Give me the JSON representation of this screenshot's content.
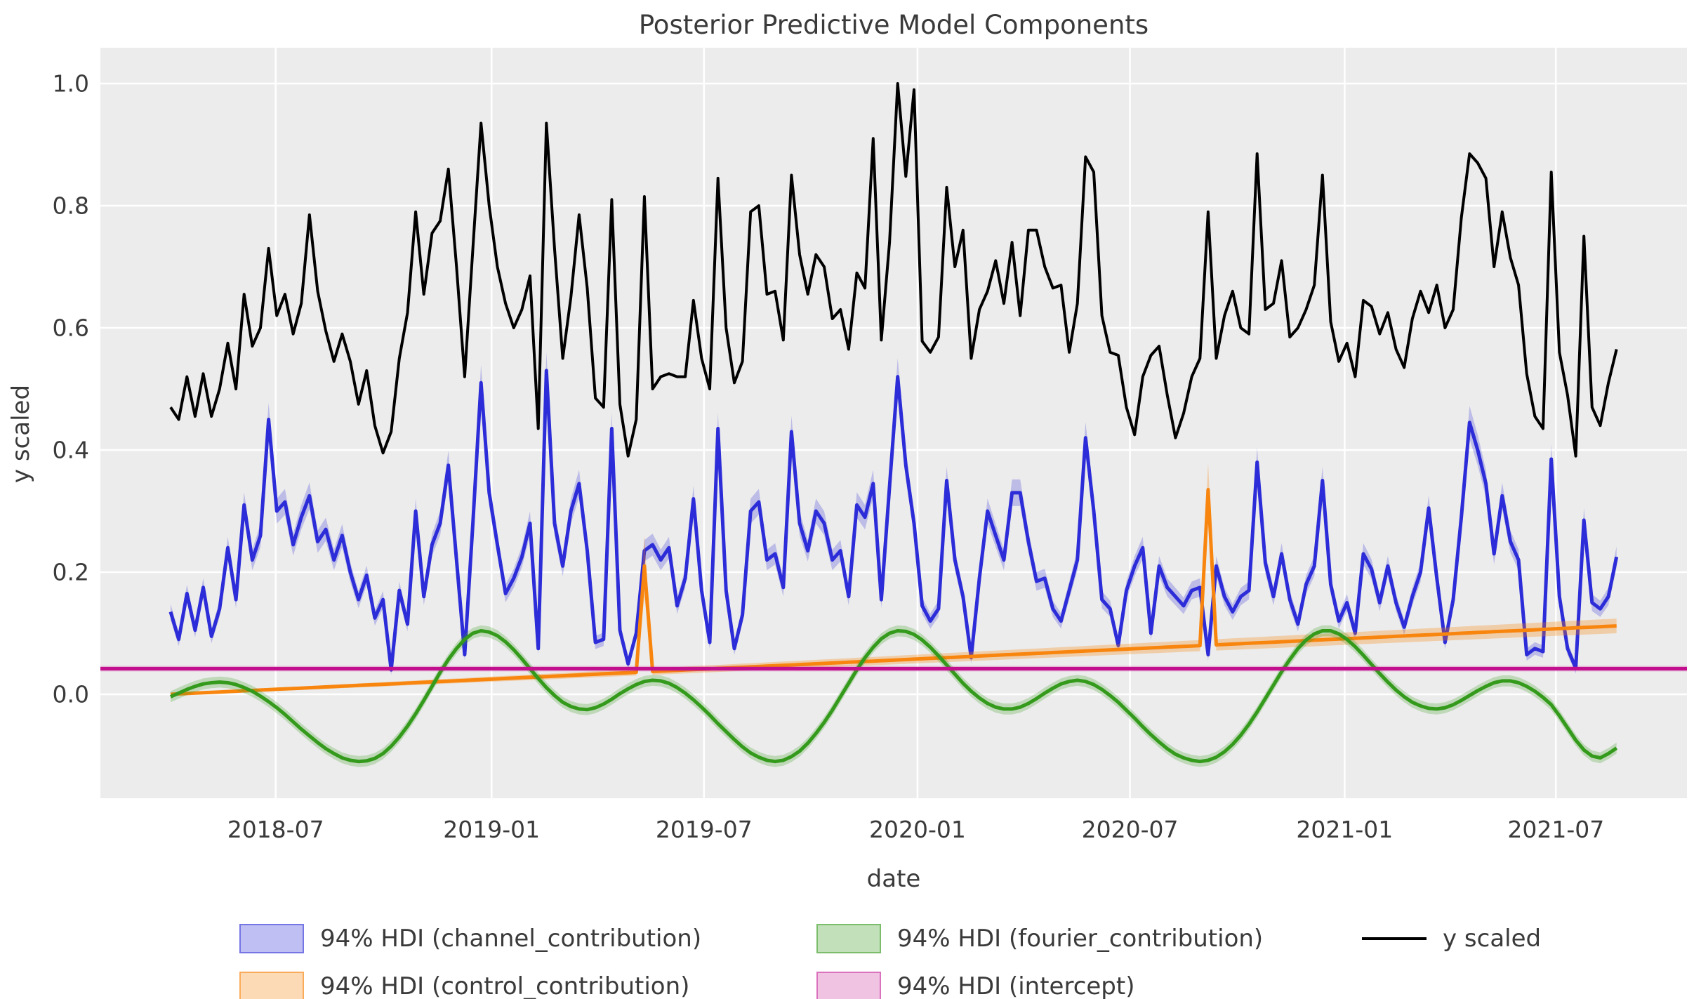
{
  "title": "Posterior Predictive Model Components",
  "colors": {
    "figure_bg": "#ffffff",
    "plot_bg": "#ececec",
    "grid": "#ffffff",
    "text": "#3a3a3a",
    "y_scaled": "#000000",
    "channel": "#2c2cd8",
    "control": "#f8850e",
    "fourier": "#349a1b",
    "intercept": "#c20f8e"
  },
  "chart_data": {
    "type": "line",
    "title": "Posterior Predictive Model Components",
    "xlabel": "date",
    "ylabel": "y scaled",
    "x_start_date": "2018-04-02",
    "x_step_days": 7,
    "n_points": 178,
    "grid": true,
    "y_ticks": [
      {
        "label": "0.0",
        "value": 0.0
      },
      {
        "label": "0.2",
        "value": 0.2
      },
      {
        "label": "0.4",
        "value": 0.4
      },
      {
        "label": "0.6",
        "value": 0.6
      },
      {
        "label": "0.8",
        "value": 0.8
      },
      {
        "label": "1.0",
        "value": 1.0
      }
    ],
    "x_ticks": [
      {
        "label": "2018-07",
        "week": 12.86
      },
      {
        "label": "2019-01",
        "week": 39.29
      },
      {
        "label": "2019-07",
        "week": 65.29
      },
      {
        "label": "2020-01",
        "week": 91.43
      },
      {
        "label": "2020-07",
        "week": 117.43
      },
      {
        "label": "2021-01",
        "week": 143.71
      },
      {
        "label": "2021-07",
        "week": 169.57
      }
    ],
    "series": [
      {
        "name": "channel_contribution",
        "kind": "line_with_hdi",
        "color": "#2c2cd8",
        "band_color": "rgba(44,44,216,0.25)",
        "band_rule": {
          "base": 0.007,
          "per_value": 0.045
        },
        "values": [
          0.135,
          0.09,
          0.165,
          0.105,
          0.175,
          0.095,
          0.14,
          0.24,
          0.155,
          0.31,
          0.22,
          0.26,
          0.45,
          0.3,
          0.315,
          0.245,
          0.29,
          0.325,
          0.25,
          0.27,
          0.22,
          0.26,
          0.2,
          0.155,
          0.195,
          0.125,
          0.155,
          0.04,
          0.17,
          0.115,
          0.3,
          0.16,
          0.245,
          0.28,
          0.375,
          0.22,
          0.065,
          0.28,
          0.51,
          0.33,
          0.245,
          0.165,
          0.19,
          0.225,
          0.28,
          0.075,
          0.53,
          0.28,
          0.21,
          0.3,
          0.345,
          0.235,
          0.085,
          0.09,
          0.435,
          0.105,
          0.05,
          0.1,
          0.235,
          0.245,
          0.22,
          0.24,
          0.145,
          0.19,
          0.32,
          0.17,
          0.085,
          0.435,
          0.17,
          0.075,
          0.13,
          0.3,
          0.315,
          0.22,
          0.23,
          0.175,
          0.43,
          0.28,
          0.235,
          0.3,
          0.28,
          0.22,
          0.235,
          0.16,
          0.31,
          0.29,
          0.345,
          0.155,
          0.34,
          0.52,
          0.375,
          0.28,
          0.145,
          0.12,
          0.14,
          0.35,
          0.22,
          0.16,
          0.06,
          0.19,
          0.3,
          0.26,
          0.22,
          0.33,
          0.33,
          0.25,
          0.185,
          0.19,
          0.14,
          0.12,
          0.17,
          0.22,
          0.42,
          0.3,
          0.155,
          0.14,
          0.08,
          0.17,
          0.21,
          0.24,
          0.1,
          0.21,
          0.175,
          0.16,
          0.145,
          0.17,
          0.175,
          0.065,
          0.21,
          0.16,
          0.135,
          0.16,
          0.17,
          0.38,
          0.215,
          0.16,
          0.23,
          0.155,
          0.115,
          0.18,
          0.21,
          0.35,
          0.18,
          0.12,
          0.15,
          0.1,
          0.23,
          0.205,
          0.15,
          0.21,
          0.15,
          0.11,
          0.16,
          0.2,
          0.305,
          0.19,
          0.085,
          0.155,
          0.29,
          0.445,
          0.4,
          0.345,
          0.23,
          0.325,
          0.25,
          0.22,
          0.065,
          0.075,
          0.07,
          0.385,
          0.16,
          0.075,
          0.043,
          0.285,
          0.15,
          0.14,
          0.16,
          0.225
        ]
      },
      {
        "name": "control_contribution",
        "kind": "line_with_hdi",
        "color": "#f8850e",
        "band_color": "rgba(248,133,14,0.3)",
        "values_linear": {
          "start": 0.0,
          "end": 0.112
        },
        "value_exceptions": {
          "58": 0.21,
          "127": 0.335
        },
        "band_halfwidth_linear": {
          "start": 0.002,
          "end": 0.012
        },
        "band_halfwidth_exceptions": {
          "58": 0.05,
          "127": 0.045
        }
      },
      {
        "name": "fourier_contribution",
        "kind": "line_with_hdi",
        "color": "#349a1b",
        "band_color": "rgba(52,154,27,0.25)",
        "band_halfwidth_const": 0.009,
        "values": [
          -0.004,
          0.002,
          0.008,
          0.013,
          0.017,
          0.019,
          0.02,
          0.019,
          0.016,
          0.011,
          0.005,
          -0.003,
          -0.012,
          -0.022,
          -0.033,
          -0.045,
          -0.057,
          -0.068,
          -0.079,
          -0.089,
          -0.097,
          -0.104,
          -0.108,
          -0.11,
          -0.109,
          -0.105,
          -0.097,
          -0.085,
          -0.07,
          -0.052,
          -0.032,
          -0.01,
          0.013,
          0.036,
          0.057,
          0.075,
          0.09,
          0.1,
          0.104,
          0.102,
          0.096,
          0.086,
          0.073,
          0.058,
          0.042,
          0.026,
          0.011,
          -0.002,
          -0.013,
          -0.02,
          -0.024,
          -0.025,
          -0.022,
          -0.016,
          -0.008,
          0.001,
          0.009,
          0.016,
          0.021,
          0.023,
          0.022,
          0.018,
          0.011,
          0.002,
          -0.009,
          -0.021,
          -0.034,
          -0.048,
          -0.061,
          -0.074,
          -0.086,
          -0.096,
          -0.103,
          -0.108,
          -0.11,
          -0.108,
          -0.102,
          -0.093,
          -0.08,
          -0.064,
          -0.046,
          -0.026,
          -0.004,
          0.018,
          0.04,
          0.06,
          0.077,
          0.091,
          0.1,
          0.104,
          0.103,
          0.098,
          0.089,
          0.077,
          0.063,
          0.048,
          0.033,
          0.018,
          0.005,
          -0.006,
          -0.015,
          -0.021,
          -0.024,
          -0.024,
          -0.021,
          -0.015,
          -0.007,
          0.002,
          0.01,
          0.017,
          0.021,
          0.023,
          0.021,
          0.016,
          0.008,
          -0.002,
          -0.013,
          -0.026,
          -0.039,
          -0.053,
          -0.066,
          -0.078,
          -0.089,
          -0.098,
          -0.104,
          -0.108,
          -0.11,
          -0.108,
          -0.103,
          -0.094,
          -0.082,
          -0.067,
          -0.049,
          -0.029,
          -0.007,
          0.015,
          0.037,
          0.057,
          0.075,
          0.089,
          0.099,
          0.104,
          0.104,
          0.099,
          0.09,
          0.078,
          0.064,
          0.049,
          0.034,
          0.02,
          0.007,
          -0.004,
          -0.013,
          -0.019,
          -0.023,
          -0.024,
          -0.022,
          -0.017,
          -0.01,
          -0.002,
          0.006,
          0.013,
          0.019,
          0.022,
          0.022,
          0.019,
          0.013,
          0.005,
          -0.005,
          -0.017,
          -0.035,
          -0.055,
          -0.075,
          -0.091,
          -0.101,
          -0.104,
          -0.097,
          -0.088
        ]
      },
      {
        "name": "intercept",
        "kind": "hline_with_hdi",
        "color": "#c20f8e",
        "band_color": "rgba(194,15,142,0.25)",
        "value": 0.042,
        "band_halfwidth_const": 0.0045,
        "extend_full_width": true
      },
      {
        "name": "y scaled",
        "kind": "line",
        "color": "#000000",
        "values": [
          0.47,
          0.45,
          0.52,
          0.455,
          0.525,
          0.455,
          0.5,
          0.575,
          0.5,
          0.655,
          0.57,
          0.6,
          0.73,
          0.62,
          0.655,
          0.59,
          0.64,
          0.785,
          0.66,
          0.595,
          0.545,
          0.59,
          0.545,
          0.475,
          0.53,
          0.44,
          0.395,
          0.43,
          0.55,
          0.625,
          0.79,
          0.655,
          0.755,
          0.775,
          0.86,
          0.7,
          0.52,
          0.73,
          0.935,
          0.8,
          0.7,
          0.64,
          0.6,
          0.63,
          0.685,
          0.435,
          0.935,
          0.73,
          0.55,
          0.65,
          0.785,
          0.665,
          0.485,
          0.47,
          0.81,
          0.475,
          0.39,
          0.45,
          0.815,
          0.5,
          0.52,
          0.525,
          0.52,
          0.52,
          0.645,
          0.55,
          0.5,
          0.845,
          0.6,
          0.51,
          0.545,
          0.79,
          0.8,
          0.655,
          0.66,
          0.58,
          0.85,
          0.72,
          0.655,
          0.72,
          0.7,
          0.615,
          0.63,
          0.565,
          0.69,
          0.665,
          0.91,
          0.58,
          0.74,
          1.0,
          0.848,
          0.99,
          0.578,
          0.56,
          0.585,
          0.83,
          0.7,
          0.76,
          0.55,
          0.63,
          0.66,
          0.71,
          0.64,
          0.74,
          0.62,
          0.76,
          0.76,
          0.7,
          0.665,
          0.67,
          0.56,
          0.64,
          0.88,
          0.855,
          0.62,
          0.56,
          0.555,
          0.47,
          0.425,
          0.52,
          0.555,
          0.57,
          0.49,
          0.42,
          0.46,
          0.52,
          0.55,
          0.79,
          0.55,
          0.62,
          0.66,
          0.6,
          0.59,
          0.885,
          0.63,
          0.64,
          0.71,
          0.585,
          0.6,
          0.63,
          0.67,
          0.85,
          0.61,
          0.545,
          0.575,
          0.52,
          0.645,
          0.635,
          0.59,
          0.625,
          0.565,
          0.535,
          0.615,
          0.66,
          0.625,
          0.67,
          0.6,
          0.63,
          0.78,
          0.885,
          0.87,
          0.845,
          0.7,
          0.79,
          0.715,
          0.67,
          0.525,
          0.455,
          0.435,
          0.855,
          0.56,
          0.49,
          0.39,
          0.75,
          0.47,
          0.44,
          0.51,
          0.565
        ]
      }
    ]
  },
  "legend": {
    "items": [
      {
        "label": "94% HDI (channel_contribution)",
        "type": "patch",
        "fill": "rgba(44,44,216,0.3)",
        "edge": "rgba(44,44,216,0.5)"
      },
      {
        "label": "94% HDI (control_contribution)",
        "type": "patch",
        "fill": "rgba(248,133,14,0.3)",
        "edge": "rgba(248,133,14,0.55)"
      },
      {
        "label": "94% HDI (fourier_contribution)",
        "type": "patch",
        "fill": "rgba(52,154,27,0.3)",
        "edge": "rgba(52,154,27,0.5)"
      },
      {
        "label": "94% HDI (intercept)",
        "type": "patch",
        "fill": "rgba(194,15,142,0.25)",
        "edge": "rgba(194,15,142,0.45)"
      },
      {
        "label": "y scaled",
        "type": "line",
        "edge": "#000000"
      }
    ]
  }
}
